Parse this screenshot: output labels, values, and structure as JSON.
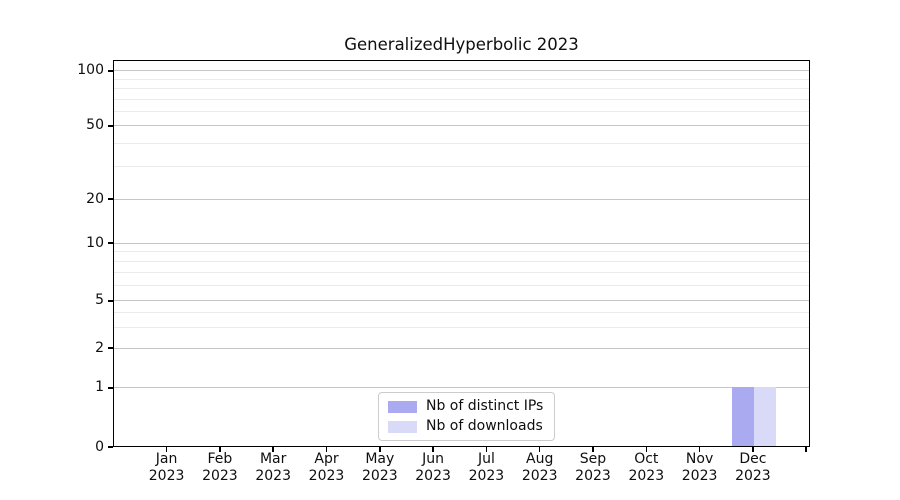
{
  "chart_data": {
    "type": "bar",
    "title": "GeneralizedHyperbolic 2023",
    "categories": [
      "Jan 2023",
      "Feb 2023",
      "Mar 2023",
      "Apr 2023",
      "May 2023",
      "Jun 2023",
      "Jul 2023",
      "Aug 2023",
      "Sep 2023",
      "Oct 2023",
      "Nov 2023",
      "Dec 2023"
    ],
    "series": [
      {
        "name": "Nb of distinct IPs",
        "color": "#aaaaf0",
        "values": [
          0,
          0,
          0,
          0,
          0,
          0,
          0,
          0,
          0,
          0,
          0,
          1
        ]
      },
      {
        "name": "Nb of downloads",
        "color": "#d9d9f8",
        "values": [
          0,
          0,
          0,
          0,
          0,
          0,
          0,
          0,
          0,
          0,
          0,
          1
        ]
      }
    ],
    "xlabel": "",
    "ylabel": "",
    "yscale": "symlog",
    "yticks": [
      0,
      1,
      2,
      5,
      10,
      20,
      50,
      100
    ],
    "ylim": [
      0,
      115
    ],
    "grid": "horizontal major and minor gridlines",
    "legend_position": "lower center inside plot"
  },
  "legend": {
    "items": [
      {
        "label": "Nb of distinct IPs",
        "color": "#aaaaf0"
      },
      {
        "label": "Nb of downloads",
        "color": "#d9d9f8"
      }
    ]
  },
  "colors": {
    "background": "#ffffff",
    "axis": "#000000",
    "grid_major": "#c6c6c6",
    "grid_minor": "#eaeaea",
    "distinct_ips_bar": "#aaaaf0",
    "downloads_bar": "#d9d9f8"
  }
}
